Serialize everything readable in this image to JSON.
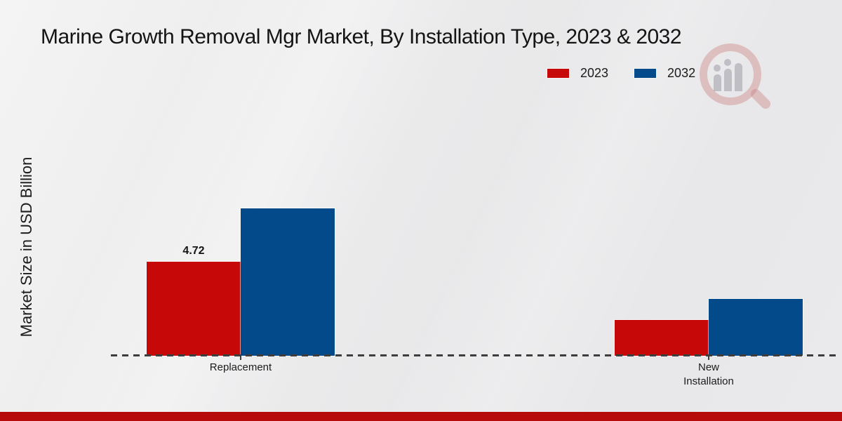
{
  "title": "Marine Growth Removal Mgr Market, By Installation Type, 2023 & 2032",
  "ylabel": "Market Size in USD Billion",
  "legend": {
    "items": [
      {
        "label": "2023",
        "color": "#c60808"
      },
      {
        "label": "2032",
        "color": "#034a8a"
      }
    ],
    "position": "top-right"
  },
  "chart_data": {
    "type": "bar",
    "categories": [
      "Replacement",
      "New Installation"
    ],
    "series": [
      {
        "name": "2023",
        "color": "#c60808",
        "values": [
          4.72,
          1.8
        ],
        "labels": [
          "4.72",
          null
        ]
      },
      {
        "name": "2032",
        "color": "#034a8a",
        "values": [
          7.4,
          2.85
        ],
        "labels": [
          null,
          null
        ]
      }
    ],
    "ylabel": "Market Size in USD Billion",
    "xlabel": "",
    "ylim": [
      0,
      8
    ],
    "grid": false,
    "y_axis_ticks_visible": false,
    "baseline_style": "dashed",
    "legend_position": "top-right"
  },
  "decorations": {
    "bottom_strip_color": "#b70a0a",
    "watermark": "magnifier-bar-chart-logo",
    "background_color": "#ebebec",
    "baseline_color": "#3d3d3d"
  }
}
